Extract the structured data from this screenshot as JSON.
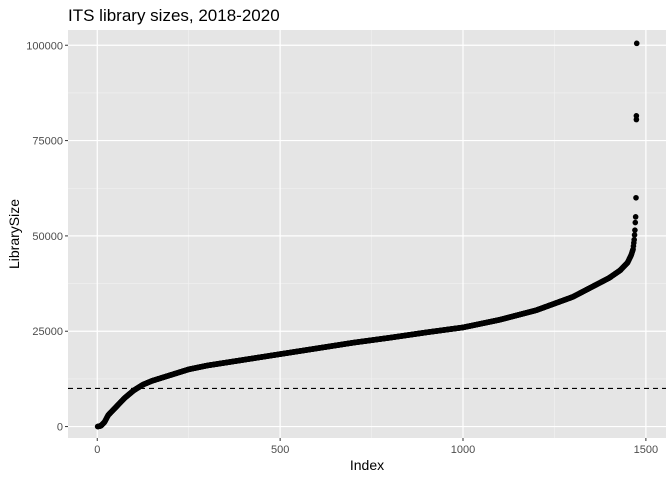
{
  "chart_data": {
    "type": "scatter",
    "title": "ITS library sizes, 2018-2020",
    "xlabel": "Index",
    "ylabel": "LibrarySize",
    "xlim": [
      -80,
      1555
    ],
    "ylim": [
      -3000,
      104000
    ],
    "x_ticks": [
      0,
      500,
      1000,
      1500
    ],
    "x_tick_labels": [
      "0",
      "500",
      "1000",
      "1500"
    ],
    "y_ticks": [
      0,
      25000,
      50000,
      75000,
      100000
    ],
    "y_tick_labels": [
      "0",
      "25000",
      "50000",
      "75000",
      "100000"
    ],
    "hline": {
      "y": 10000,
      "style": "dashed"
    },
    "grid": true,
    "legend": "none",
    "n_points": 1475,
    "curve": [
      [
        1,
        0
      ],
      [
        10,
        200
      ],
      [
        20,
        1200
      ],
      [
        30,
        3000
      ],
      [
        50,
        5000
      ],
      [
        75,
        7500
      ],
      [
        100,
        9500
      ],
      [
        125,
        11000
      ],
      [
        150,
        12000
      ],
      [
        200,
        13500
      ],
      [
        250,
        15000
      ],
      [
        300,
        16000
      ],
      [
        400,
        17500
      ],
      [
        500,
        19000
      ],
      [
        600,
        20500
      ],
      [
        700,
        22000
      ],
      [
        800,
        23300
      ],
      [
        900,
        24700
      ],
      [
        1000,
        26000
      ],
      [
        1100,
        28000
      ],
      [
        1200,
        30500
      ],
      [
        1300,
        34000
      ],
      [
        1350,
        36500
      ],
      [
        1400,
        39000
      ],
      [
        1430,
        41000
      ],
      [
        1450,
        43000
      ],
      [
        1460,
        45000
      ],
      [
        1465,
        46500
      ],
      [
        1468,
        49000
      ],
      [
        1470,
        51500
      ],
      [
        1471,
        53500
      ],
      [
        1472,
        55000
      ],
      [
        1473,
        60000
      ],
      [
        1474,
        80500
      ],
      [
        1475,
        100500
      ]
    ],
    "extra_points": [
      [
        1474,
        81500
      ]
    ],
    "colors": {
      "panel": "#e5e5e5",
      "grid_major": "#ffffff",
      "point": "#000000",
      "hline": "#000000"
    }
  }
}
